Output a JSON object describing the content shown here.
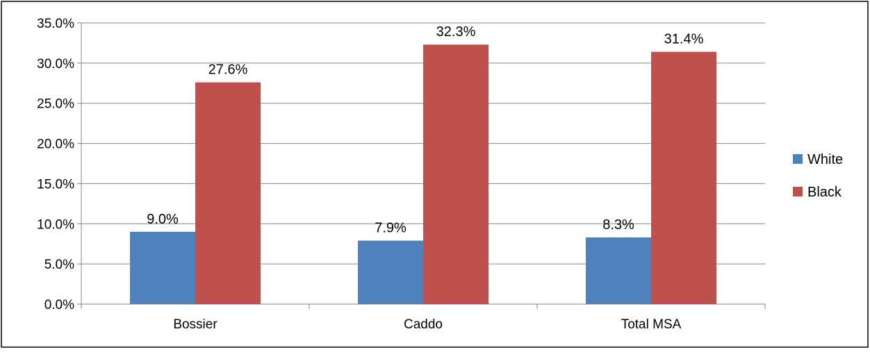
{
  "chart_data": {
    "type": "bar",
    "title": "",
    "xlabel": "",
    "ylabel": "",
    "categories": [
      "Bossier",
      "Caddo",
      "Total MSA"
    ],
    "series": [
      {
        "name": "White",
        "values": [
          9.0,
          7.9,
          8.3
        ],
        "labels": [
          "9.0%",
          "7.9%",
          "8.3%"
        ],
        "color": "#4f81bd"
      },
      {
        "name": "Black",
        "values": [
          27.6,
          32.3,
          31.4
        ],
        "labels": [
          "27.6%",
          "32.3%",
          "31.4%"
        ],
        "color": "#c0504d"
      }
    ],
    "ylim": [
      0,
      35
    ],
    "yticks": [
      0,
      5,
      10,
      15,
      20,
      25,
      30,
      35
    ],
    "ytick_labels": [
      "0.0%",
      "5.0%",
      "10.0%",
      "15.0%",
      "20.0%",
      "25.0%",
      "30.0%",
      "35.0%"
    ],
    "grid": true,
    "legend_position": "right",
    "colors": {
      "gridline": "#868686",
      "axis": "#868686",
      "text": "#000000",
      "border": "#000000"
    }
  }
}
